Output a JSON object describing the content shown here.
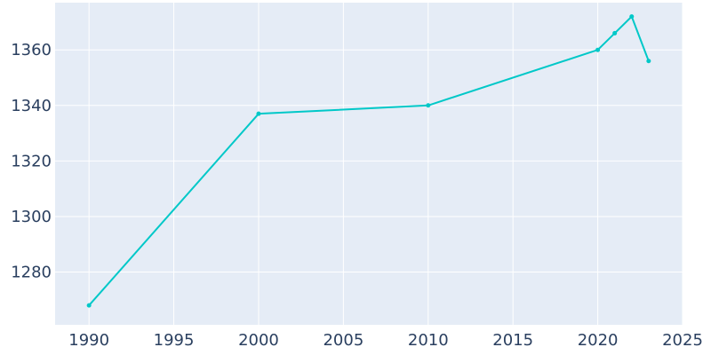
{
  "chart_data": {
    "type": "line",
    "title": "",
    "xlabel": "",
    "ylabel": "",
    "x": [
      1990,
      2000,
      2010,
      2020,
      2021,
      2022,
      2023
    ],
    "series": [
      {
        "values": [
          1268,
          1337,
          1340,
          1360,
          1366,
          1372,
          1356
        ]
      }
    ],
    "xlim": [
      1988,
      2025
    ],
    "ylim": [
      1261,
      1377
    ],
    "x_ticks": [
      1990,
      1995,
      2000,
      2005,
      2010,
      2015,
      2020,
      2025
    ],
    "y_ticks": [
      1280,
      1300,
      1320,
      1340,
      1360
    ],
    "x_tick_labels": [
      "1990",
      "1995",
      "2000",
      "2005",
      "2010",
      "2015",
      "2020",
      "2025"
    ],
    "y_tick_labels": [
      "1280",
      "1300",
      "1320",
      "1340",
      "1360"
    ],
    "grid": true,
    "legend": "none",
    "colors": {
      "line": "#00c8c8",
      "plot_background": "#e5ecf6",
      "grid": "#ffffff",
      "tick_text": "#2a3f5f"
    }
  }
}
